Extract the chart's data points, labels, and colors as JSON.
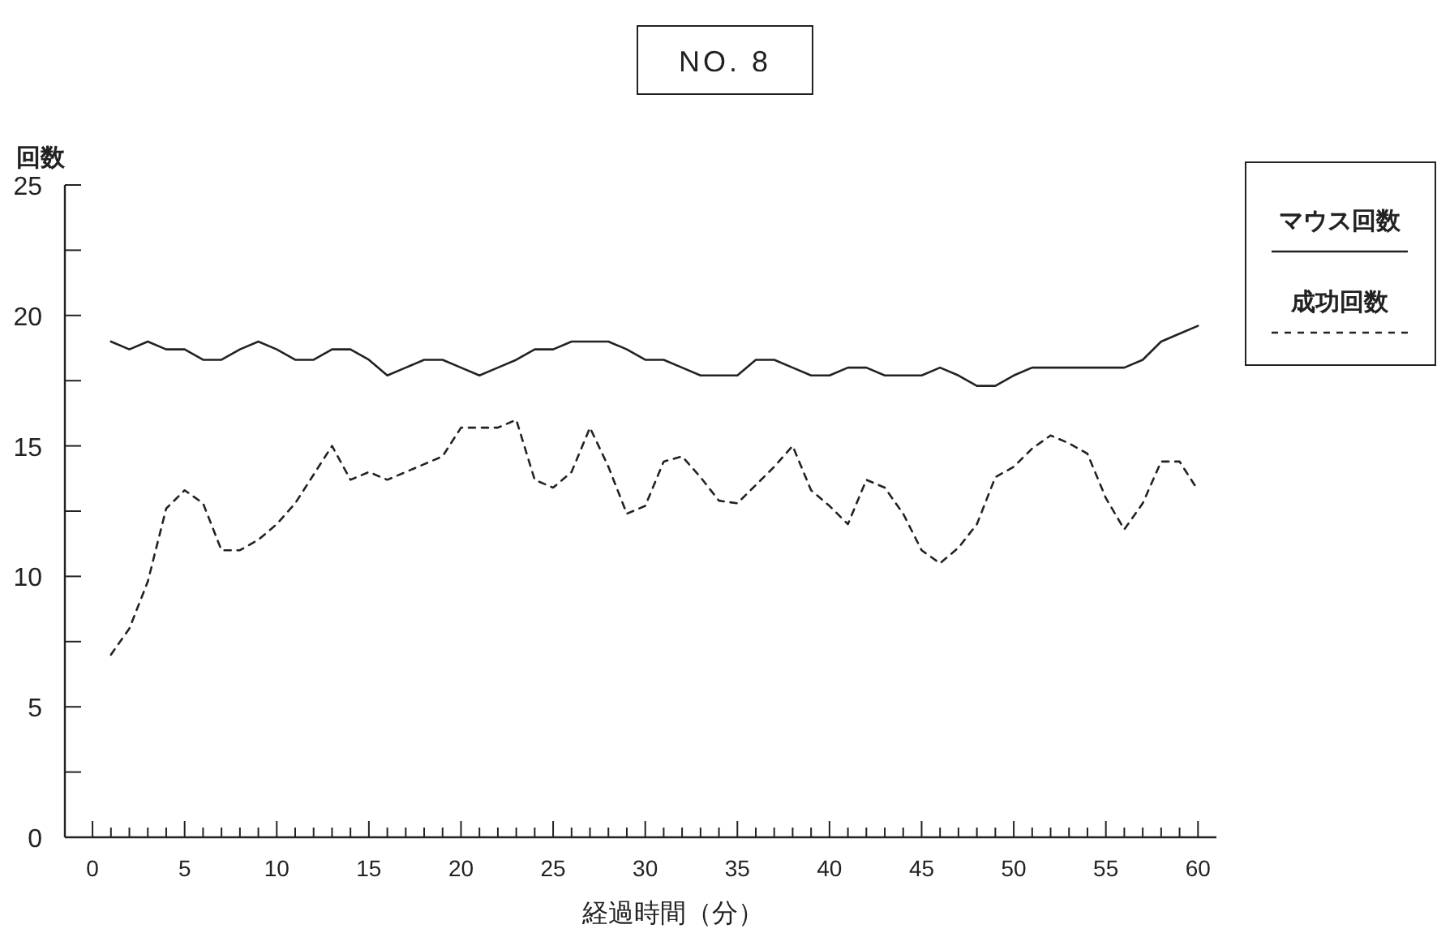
{
  "chart_data": {
    "type": "line",
    "title": "NO. 8",
    "xlabel": "経過時間（分）",
    "ylabel": "回数",
    "x": [
      1,
      2,
      3,
      4,
      5,
      6,
      7,
      8,
      9,
      10,
      11,
      12,
      13,
      14,
      15,
      16,
      17,
      18,
      19,
      20,
      21,
      22,
      23,
      24,
      25,
      26,
      27,
      28,
      29,
      30,
      31,
      32,
      33,
      34,
      35,
      36,
      37,
      38,
      39,
      40,
      41,
      42,
      43,
      44,
      45,
      46,
      47,
      48,
      49,
      50,
      51,
      52,
      53,
      54,
      55,
      56,
      57,
      58,
      59,
      60
    ],
    "series": [
      {
        "name": "マウス回数",
        "color": "#222222",
        "line_style": "solid",
        "values": [
          19,
          18.7,
          19,
          18.7,
          18.7,
          18.3,
          18.3,
          18.7,
          19,
          18.7,
          18.3,
          18.3,
          18.7,
          18.7,
          18.3,
          17.7,
          18,
          18.3,
          18.3,
          18,
          17.7,
          18,
          18.3,
          18.7,
          18.7,
          19,
          19,
          19,
          18.7,
          18.3,
          18.3,
          18,
          17.7,
          17.7,
          17.7,
          18.3,
          18.3,
          18,
          17.7,
          17.7,
          18,
          18,
          17.7,
          17.7,
          17.7,
          18,
          17.7,
          17.3,
          17.3,
          17.7,
          18,
          18,
          18,
          18,
          18,
          18,
          18.3,
          19,
          19.3,
          19.6
        ]
      },
      {
        "name": "成功回数",
        "color": "#222222",
        "line_style": "dashed",
        "values": [
          7,
          8,
          9.8,
          12.6,
          13.3,
          12.8,
          11,
          11,
          11.4,
          12,
          12.8,
          13.9,
          15,
          13.7,
          14,
          13.7,
          14,
          14.3,
          14.6,
          15.7,
          15.7,
          15.7,
          16,
          13.7,
          13.4,
          14,
          15.7,
          14.2,
          12.4,
          12.7,
          14.4,
          14.6,
          13.8,
          12.9,
          12.8,
          13.5,
          14.2,
          15,
          13.3,
          12.7,
          12,
          13.7,
          13.4,
          12.4,
          11,
          10.5,
          11.1,
          12,
          13.8,
          14.2,
          14.9,
          15.4,
          15.1,
          14.7,
          13,
          11.8,
          12.8,
          14.4,
          14.4,
          13.3
        ]
      }
    ],
    "xlim": [
      -1.5,
      61
    ],
    "xticks": [
      0,
      {
        "value": 1,
        "label": null
      },
      {
        "value": 2,
        "label": null
      },
      {
        "value": 3,
        "label": null
      },
      {
        "value": 4,
        "label": null
      },
      5,
      {
        "value": 6,
        "label": null
      },
      {
        "value": 7,
        "label": null
      },
      {
        "value": 8,
        "label": null
      },
      {
        "value": 9,
        "label": null
      },
      10,
      {
        "value": 11,
        "label": null
      },
      {
        "value": 12,
        "label": null
      },
      {
        "value": 13,
        "label": null
      },
      {
        "value": 14,
        "label": null
      },
      15,
      {
        "value": 16,
        "label": null
      },
      {
        "value": 17,
        "label": null
      },
      {
        "value": 18,
        "label": null
      },
      {
        "value": 19,
        "label": null
      },
      20,
      {
        "value": 21,
        "label": null
      },
      {
        "value": 22,
        "label": null
      },
      {
        "value": 23,
        "label": null
      },
      {
        "value": 24,
        "label": null
      },
      25,
      {
        "value": 26,
        "label": null
      },
      {
        "value": 27,
        "label": null
      },
      {
        "value": 28,
        "label": null
      },
      {
        "value": 29,
        "label": null
      },
      30,
      {
        "value": 31,
        "label": null
      },
      {
        "value": 32,
        "label": null
      },
      {
        "value": 33,
        "label": null
      },
      {
        "value": 34,
        "label": null
      },
      35,
      {
        "value": 36,
        "label": null
      },
      {
        "value": 37,
        "label": null
      },
      {
        "value": 38,
        "label": null
      },
      {
        "value": 39,
        "label": null
      },
      40,
      {
        "value": 41,
        "label": null
      },
      {
        "value": 42,
        "label": null
      },
      {
        "value": 43,
        "label": null
      },
      {
        "value": 44,
        "label": null
      },
      45,
      {
        "value": 46,
        "label": null
      },
      {
        "value": 47,
        "label": null
      },
      {
        "value": 48,
        "label": null
      },
      {
        "value": 49,
        "label": null
      },
      50,
      {
        "value": 51,
        "label": null
      },
      {
        "value": 52,
        "label": null
      },
      {
        "value": 53,
        "label": null
      },
      {
        "value": 54,
        "label": null
      },
      55,
      {
        "value": 56,
        "label": null
      },
      {
        "value": 57,
        "label": null
      },
      {
        "value": 58,
        "label": null
      },
      {
        "value": 59,
        "label": null
      },
      60
    ],
    "ylim": [
      0,
      25
    ],
    "yticks": [
      0,
      {
        "value": 2.5,
        "label": null
      },
      5,
      {
        "value": 7.5,
        "label": null
      },
      10,
      {
        "value": 12.5,
        "label": null
      },
      15,
      {
        "value": 17.5,
        "label": null
      },
      20,
      {
        "value": 22.5,
        "label": null
      },
      25
    ],
    "grid": false,
    "legend": "right",
    "marker": "none"
  }
}
